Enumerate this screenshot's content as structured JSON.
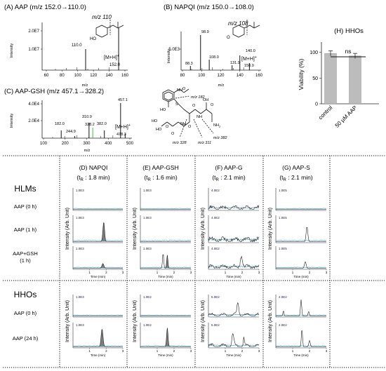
{
  "spectra": {
    "a": {
      "title": "(A) AAP (m/z 152.0→110.0)",
      "ylabel": "Intensity",
      "xlabel": "m/z",
      "yticks": [
        "2.0E7",
        "1.0E7"
      ],
      "xticks": [
        "60",
        "80",
        "100",
        "120",
        "140",
        "160"
      ],
      "peaks": [
        {
          "mz": 110.0,
          "rel": 0.5
        },
        {
          "mz": 152.0,
          "rel": 1.0
        }
      ],
      "peak_labels": [
        "110.0",
        "152.0"
      ],
      "frag_label": "m/z 110",
      "mh_label": "[M+H]",
      "mh_sup": "+",
      "ho": "HO"
    },
    "b": {
      "title": "(B) NAPQI (m/z 150.0→108.0)",
      "ylabel": "Intensity",
      "xlabel": "m/z",
      "yticks": [
        "5.0E3"
      ],
      "xticks": [
        "80",
        "100",
        "120",
        "140",
        "160"
      ],
      "peaks": [
        {
          "mz": 88.3,
          "rel": 0.12
        },
        {
          "mz": 98.9,
          "rel": 1.0
        },
        {
          "mz": 108.0,
          "rel": 0.3
        },
        {
          "mz": 131.9,
          "rel": 0.14
        },
        {
          "mz": 140.0,
          "rel": 0.42
        },
        {
          "mz": 150.0,
          "rel": 0.2
        }
      ],
      "peak_labels": [
        "88.3",
        "98.9",
        "108.0",
        "131.9",
        "140.0",
        "150.0"
      ],
      "frag_label": "m/z 108",
      "mh_label": "[M+H]",
      "mh_sup": "+",
      "o": "O"
    },
    "c": {
      "title": "(C) AAP-GSH (m/z 457.1→328.2)",
      "ylabel": "Intensity",
      "xlabel": "m/z",
      "yticks": [
        "4.0E4",
        "2.0E4"
      ],
      "xticks": [
        "100",
        "200",
        "300",
        "400",
        "500"
      ],
      "peaks": [
        {
          "mz": 182.0,
          "rel": 0.22
        },
        {
          "mz": 244.9,
          "rel": 0.06
        },
        {
          "mz": 310.9,
          "rel": 0.44
        },
        {
          "mz": 328.2,
          "rel": 0.3
        },
        {
          "mz": 382.0,
          "rel": 0.22
        },
        {
          "mz": 457.1,
          "rel": 1.0
        },
        {
          "mz": 478.3,
          "rel": 0.12
        }
      ],
      "peak_labels": [
        "182.0",
        "244.9",
        "310.9",
        "328.2",
        "382.0",
        "457.1",
        "478.3"
      ],
      "mh_label": "[M+H]",
      "mh_sup": "+",
      "struct_labels": [
        "m/z 182",
        "m/z 328",
        "m/z 311",
        "m/z 382",
        "HO",
        "HO",
        "OH",
        "O",
        "O",
        "NH",
        "NH",
        "NH",
        "S",
        "O",
        "O",
        "O",
        "O",
        "HO"
      ],
      "nh2": "NH",
      "nh2_sub": "2"
    }
  },
  "viability": {
    "title": "(H) HHOs",
    "ylabel": "Viability (%)",
    "yticks": [
      "100",
      "50",
      "0"
    ],
    "ylim": [
      0,
      120
    ],
    "categories": [
      "control",
      "50 μM AAP"
    ],
    "values": [
      98,
      93
    ],
    "errors": [
      5,
      5
    ],
    "sig": "ns",
    "bar_color": "#bcbcbc"
  },
  "grid": {
    "columns": [
      {
        "title": "(D) NAPQI",
        "tr_pre": "(t",
        "tr_sub": "R",
        "tr_post": " : 1.8 min)"
      },
      {
        "title": "(E) AAP-GSH",
        "tr_pre": "(t",
        "tr_sub": "R",
        "tr_post": " : 1.6 min)"
      },
      {
        "title": "(F) AAP-G",
        "tr_pre": "(t",
        "tr_sub": "R",
        "tr_post": " : 2.1 min)"
      },
      {
        "title": "(G) AAP-S",
        "tr_pre": "(t",
        "tr_sub": "R",
        "tr_post": " : 2.1 min)"
      }
    ],
    "ylabel": "Intensity (Arb. Unit)",
    "xlabel": "Time (min)",
    "xticks": [
      "1",
      "2",
      "3"
    ],
    "hlms": {
      "group": "HLMs",
      "rows": [
        "AAP (0 h)",
        "AAP (1 h)",
        "AAP+GSH",
        "(1 h)"
      ],
      "yticks": [
        [
          "1.0E3",
          "1.0E3",
          "1.0E3"
        ],
        [
          "1.0E3",
          "1.0E3",
          "1.0E3"
        ],
        [
          "4.0E2",
          "4.0E2",
          "4.0E2"
        ],
        [
          "1.0E5",
          "1.0E5",
          "1.0E5"
        ]
      ]
    },
    "hhos": {
      "group": "HHOs",
      "rows": [
        "AAP (0 h)",
        "AAP (24 h)"
      ],
      "yticks": [
        [
          "1.0E3",
          "1.0E3"
        ],
        [
          "1.0E2",
          "1.0E2"
        ],
        [
          "5.0E2",
          "5.0E2"
        ],
        [
          "2.0E2",
          "2.0E2"
        ]
      ]
    }
  }
}
